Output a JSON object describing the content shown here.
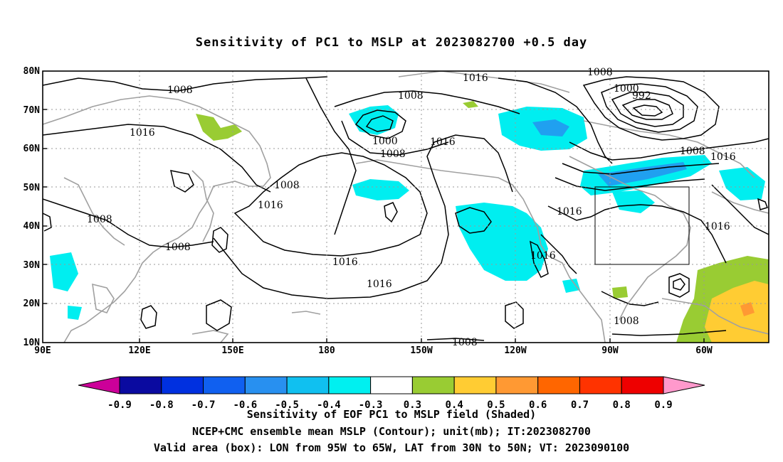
{
  "title": "Sensitivity of PC1 to MSLP at 2023082700 +0.5 day",
  "lat_labels": [
    "80N",
    "70N",
    "60N",
    "50N",
    "40N",
    "30N",
    "20N",
    "10N"
  ],
  "lon_labels": [
    "90E",
    "120E",
    "150E",
    "180",
    "150W",
    "120W",
    "90W",
    "60W"
  ],
  "contour_labels": [
    "1008",
    "1016",
    "1008",
    "1008",
    "1008",
    "1016",
    "1008",
    "1016",
    "1008",
    "1000",
    "1008",
    "1016",
    "1016",
    "1008",
    "1000",
    "992",
    "1008",
    "1016",
    "1016",
    "1016",
    "1016",
    "1016",
    "1008",
    "1008"
  ],
  "colorbar": {
    "ticks": [
      "-0.9",
      "-0.8",
      "-0.7",
      "-0.6",
      "-0.5",
      "-0.4",
      "-0.3",
      "0.3",
      "0.4",
      "0.5",
      "0.6",
      "0.7",
      "0.8",
      "0.9"
    ],
    "colors": [
      "#cc0099",
      "#0a0aa0",
      "#0030e0",
      "#1060f0",
      "#2890f0",
      "#10c0f0",
      "#00f0f0",
      "#ffffff",
      "#99cc33",
      "#ffcc33",
      "#ff9933",
      "#ff6600",
      "#ff3300",
      "#ee0000",
      "#ff99cc"
    ]
  },
  "captions": [
    "Sensitivity of EOF PC1 to MSLP field (Shaded)",
    "NCEP+CMC ensemble mean MSLP (Contour); unit(mb); IT:2023082700",
    "Valid area (box): LON from 95W to 65W, LAT from 30N to 50N; VT: 2023090100"
  ]
}
